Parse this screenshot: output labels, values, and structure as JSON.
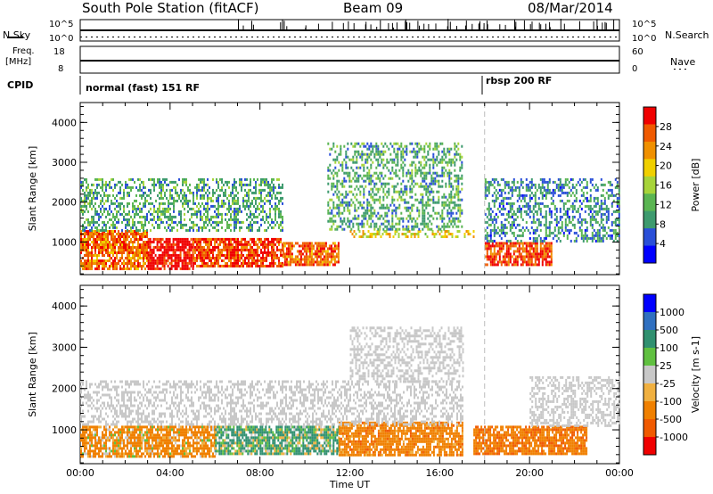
{
  "header": {
    "station": "South Pole Station (fitACF)",
    "beam": "Beam 09",
    "date": "08/Mar/2014"
  },
  "noise_panel": {
    "left_label": "N.Sky",
    "left_ticks": [
      "10^5",
      "10^0"
    ],
    "right_ticks": [
      "10^5",
      "10^0"
    ],
    "right_label": "N.Search"
  },
  "freq_panel": {
    "left_label_line1": "Freq.",
    "left_label_line2": "[MHz]",
    "left_ticks": [
      "18",
      "8"
    ],
    "right_ticks": [
      "60",
      "0"
    ],
    "right_label": "Nave"
  },
  "cpid": {
    "label": "CPID",
    "segments": [
      {
        "text": "normal (fast) 151 RF",
        "start_hour": 0
      },
      {
        "text": "rbsp 200 RF",
        "start_hour": 18.0
      }
    ]
  },
  "colors": {
    "power_scale": [
      "#0000ff",
      "#2a4fd8",
      "#3d9a6e",
      "#5ab552",
      "#a7d43a",
      "#f0d000",
      "#f09000",
      "#f05a00",
      "#f00000"
    ],
    "velocity_scale": [
      "#0000ff",
      "#3070c0",
      "#309070",
      "#60c040",
      "#c8c8c8",
      "#f0b040",
      "#f08000",
      "#f05a00",
      "#f00000"
    ]
  },
  "chart_data": [
    {
      "type": "heatmap",
      "name_key": "power",
      "xlabel": "",
      "ylabel": "Slant Range [km]",
      "xlim": [
        0,
        24
      ],
      "ylim": [
        180,
        4500
      ],
      "yticks": [
        "1000",
        "2000",
        "3000",
        "4000"
      ],
      "colorbar": {
        "label": "Power [dB]",
        "ticks": [
          "28",
          "24",
          "20",
          "16",
          "12",
          "8",
          "4"
        ],
        "range": [
          0,
          30
        ]
      },
      "echo_bands": [
        {
          "t0": 0.0,
          "t1": 3.0,
          "r0": 350,
          "r1": 1300,
          "value": 24
        },
        {
          "t0": 3.0,
          "t1": 5.0,
          "r0": 350,
          "r1": 1100,
          "value": 30
        },
        {
          "t0": 5.0,
          "t1": 9.0,
          "r0": 400,
          "r1": 1100,
          "value": 26
        },
        {
          "t0": 9.0,
          "t1": 11.5,
          "r0": 450,
          "r1": 1000,
          "value": 24
        },
        {
          "t0": 12.0,
          "t1": 17.5,
          "r0": 1100,
          "r1": 1300,
          "value": 18
        },
        {
          "t0": 18.0,
          "t1": 21.0,
          "r0": 400,
          "r1": 1000,
          "value": 26
        },
        {
          "t0": 0.0,
          "t1": 9.0,
          "r0": 1300,
          "r1": 2600,
          "value": 10
        },
        {
          "t0": 11.0,
          "t1": 17.0,
          "r0": 1300,
          "r1": 3500,
          "value": 10
        },
        {
          "t0": 18.0,
          "t1": 24.0,
          "r0": 1000,
          "r1": 2600,
          "value": 8
        }
      ]
    },
    {
      "type": "heatmap",
      "name_key": "velocity",
      "xlabel": "Time UT",
      "ylabel": "Slant Range [km]",
      "xlim": [
        0,
        24
      ],
      "ylim": [
        180,
        4500
      ],
      "xticks": [
        "00:00",
        "04:00",
        "08:00",
        "12:00",
        "16:00",
        "20:00",
        "00:00"
      ],
      "yticks": [
        "1000",
        "2000",
        "3000",
        "4000"
      ],
      "colorbar": {
        "label": "Velocity [m s-1]",
        "ticks": [
          "1000",
          "500",
          "100",
          "25",
          "-25",
          "-100",
          "-500",
          "-1000"
        ],
        "range": [
          -1000,
          1000
        ]
      },
      "echo_bands": [
        {
          "t0": 0.0,
          "t1": 6.0,
          "r0": 350,
          "r1": 1100,
          "value": -200
        },
        {
          "t0": 6.0,
          "t1": 11.5,
          "r0": 400,
          "r1": 1100,
          "value": 150
        },
        {
          "t0": 11.5,
          "t1": 17.0,
          "r0": 400,
          "r1": 1200,
          "value": -300
        },
        {
          "t0": 0.0,
          "t1": 17.0,
          "r0": 1100,
          "r1": 2200,
          "value": 0
        },
        {
          "t0": 12.0,
          "t1": 17.0,
          "r0": 2200,
          "r1": 3500,
          "value": 0
        },
        {
          "t0": 17.5,
          "t1": 22.5,
          "r0": 400,
          "r1": 1100,
          "value": -400
        },
        {
          "t0": 20.0,
          "t1": 24.0,
          "r0": 1100,
          "r1": 2300,
          "value": 0
        }
      ]
    }
  ]
}
